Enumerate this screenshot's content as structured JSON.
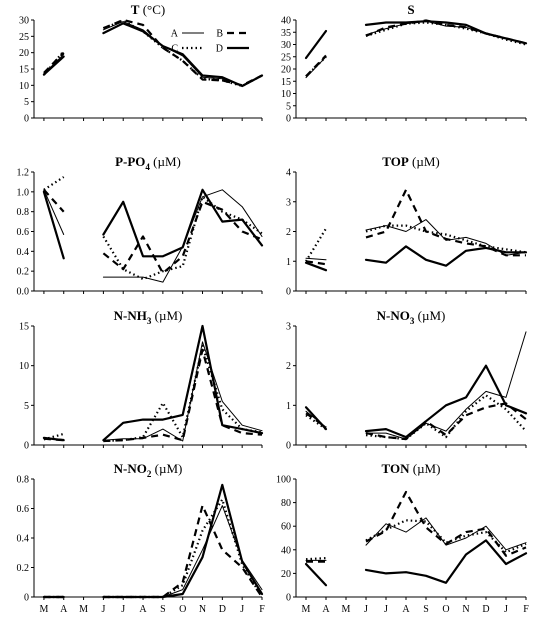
{
  "styles": {
    "A": {
      "width": 1.0,
      "dash": ""
    },
    "B": {
      "width": 2.2,
      "dash": "7,5"
    },
    "C": {
      "width": 2.2,
      "dash": "1.5,3"
    },
    "D": {
      "width": 2.2,
      "dash": ""
    }
  },
  "chart_data": [
    {
      "type": "line",
      "title": "T",
      "unit": "(°C)",
      "categories": [
        "M",
        "A",
        "M",
        "J",
        "J",
        "A",
        "S",
        "O",
        "N",
        "D",
        "J",
        "F"
      ],
      "ylim": [
        0,
        30
      ],
      "yticks": [
        "0",
        "5",
        "10",
        "15",
        "20",
        "25",
        "30"
      ],
      "legend": [
        "A",
        "B",
        "C",
        "D"
      ],
      "series": [
        {
          "name": "A",
          "values": [
            13.5,
            19.5,
            null,
            27,
            29.5,
            27,
            22,
            19,
            12.5,
            12,
            10,
            13
          ]
        },
        {
          "name": "B",
          "values": [
            13.8,
            20,
            null,
            27.5,
            30,
            28.5,
            21.5,
            17.5,
            11.8,
            11.5,
            10,
            13
          ]
        },
        {
          "name": "C",
          "values": [
            13.2,
            20.5,
            null,
            27.5,
            29.8,
            26.5,
            21.5,
            17.5,
            12,
            11.5,
            9.8,
            13
          ]
        },
        {
          "name": "D",
          "values": [
            13.3,
            18.8,
            null,
            26,
            29,
            26.5,
            22,
            19.5,
            13,
            12.5,
            9.8,
            13
          ]
        }
      ]
    },
    {
      "type": "line",
      "title": "S",
      "unit": "",
      "categories": [
        "M",
        "A",
        "M",
        "J",
        "J",
        "A",
        "S",
        "O",
        "N",
        "D",
        "J",
        "F"
      ],
      "ylim": [
        0,
        40
      ],
      "yticks": [
        "0",
        "5",
        "10",
        "15",
        "20",
        "25",
        "30",
        "35",
        "40"
      ],
      "series": [
        {
          "name": "A",
          "values": [
            16.5,
            25,
            null,
            34,
            36.5,
            38.5,
            39.5,
            37.5,
            37,
            34.5,
            32.5,
            30.5
          ]
        },
        {
          "name": "B",
          "values": [
            17,
            25.5,
            null,
            33.5,
            37,
            38.5,
            39.8,
            38,
            37,
            34.5,
            32.5,
            30.5
          ]
        },
        {
          "name": "C",
          "values": [
            17,
            25,
            null,
            33.5,
            36,
            38.5,
            39,
            38,
            36.5,
            34.5,
            32,
            30
          ]
        },
        {
          "name": "D",
          "values": [
            24.5,
            35.5,
            null,
            38,
            39,
            39,
            39.5,
            39,
            38,
            34.5,
            32.5,
            30.5
          ]
        }
      ]
    },
    {
      "type": "line",
      "title": "P-PO4",
      "unit": "(µM)",
      "categories": [
        "M",
        "A",
        "M",
        "J",
        "J",
        "A",
        "S",
        "O",
        "N",
        "D",
        "J",
        "F"
      ],
      "ylim": [
        0,
        1.2
      ],
      "yticks": [
        "0.0",
        "0.2",
        "0.4",
        "0.6",
        "0.8",
        "1.0",
        "1.2"
      ],
      "series": [
        {
          "name": "A",
          "values": [
            1.02,
            0.57,
            null,
            0.14,
            0.14,
            0.14,
            0.09,
            0.45,
            0.95,
            1.02,
            0.85,
            0.55
          ]
        },
        {
          "name": "B",
          "values": [
            1.02,
            0.8,
            null,
            0.38,
            0.22,
            0.55,
            0.18,
            0.35,
            0.9,
            0.82,
            0.6,
            0.52
          ]
        },
        {
          "name": "C",
          "values": [
            1.02,
            1.15,
            null,
            0.55,
            0.22,
            0.12,
            0.2,
            0.25,
            0.95,
            0.8,
            0.72,
            0.58
          ]
        },
        {
          "name": "D",
          "values": [
            1.0,
            0.33,
            null,
            0.57,
            0.9,
            0.35,
            0.35,
            0.44,
            1.02,
            0.7,
            0.72,
            0.46
          ]
        }
      ]
    },
    {
      "type": "line",
      "title": "TOP",
      "unit": "(µM)",
      "categories": [
        "M",
        "A",
        "M",
        "J",
        "J",
        "A",
        "S",
        "O",
        "N",
        "D",
        "J",
        "F"
      ],
      "ylim": [
        0,
        4
      ],
      "yticks": [
        "0",
        "1",
        "2",
        "3",
        "4"
      ],
      "series": [
        {
          "name": "A",
          "values": [
            1.1,
            1.05,
            null,
            2.05,
            2.2,
            2.0,
            2.4,
            1.7,
            1.8,
            1.6,
            1.2,
            1.3
          ]
        },
        {
          "name": "B",
          "values": [
            1.0,
            0.9,
            null,
            1.8,
            2.0,
            3.4,
            2.0,
            1.75,
            1.6,
            1.5,
            1.2,
            1.2
          ]
        },
        {
          "name": "C",
          "values": [
            1.0,
            2.1,
            null,
            2.0,
            2.2,
            2.2,
            2.0,
            1.9,
            1.7,
            1.5,
            1.4,
            1.3
          ]
        },
        {
          "name": "D",
          "values": [
            0.95,
            0.7,
            null,
            1.05,
            0.95,
            1.5,
            1.05,
            0.85,
            1.35,
            1.45,
            1.3,
            1.3
          ]
        }
      ]
    },
    {
      "type": "line",
      "title": "N-NH3",
      "unit": "(µM)",
      "categories": [
        "M",
        "A",
        "M",
        "J",
        "J",
        "A",
        "S",
        "O",
        "N",
        "D",
        "J",
        "F"
      ],
      "ylim": [
        0,
        15
      ],
      "yticks": [
        "0",
        "5",
        "10",
        "15"
      ],
      "series": [
        {
          "name": "A",
          "values": [
            0.8,
            0.7,
            null,
            0.6,
            0.8,
            0.8,
            2.0,
            0.5,
            13,
            5.5,
            2.5,
            1.8
          ]
        },
        {
          "name": "B",
          "values": [
            0.8,
            0.6,
            null,
            0.5,
            0.6,
            0.9,
            1.3,
            0.6,
            12,
            2.5,
            1.5,
            1.3
          ]
        },
        {
          "name": "C",
          "values": [
            0.7,
            1.4,
            null,
            0.5,
            0.6,
            1.0,
            5.3,
            1.0,
            12.5,
            4.5,
            2.0,
            1.6
          ]
        },
        {
          "name": "D",
          "values": [
            0.9,
            0.6,
            null,
            0.6,
            2.8,
            3.2,
            3.2,
            3.8,
            15,
            2.5,
            2.0,
            1.5
          ]
        }
      ]
    },
    {
      "type": "line",
      "title": "N-NO3",
      "unit": "(µM)",
      "categories": [
        "M",
        "A",
        "M",
        "J",
        "J",
        "A",
        "S",
        "O",
        "N",
        "D",
        "J",
        "F"
      ],
      "ylim": [
        0,
        3
      ],
      "yticks": [
        "0",
        "1",
        "2",
        "3"
      ],
      "series": [
        {
          "name": "A",
          "values": [
            0.85,
            0.45,
            null,
            0.3,
            0.3,
            0.15,
            0.55,
            0.35,
            0.9,
            1.35,
            1.2,
            2.85
          ]
        },
        {
          "name": "B",
          "values": [
            0.8,
            0.45,
            null,
            0.3,
            0.2,
            0.15,
            0.6,
            0.25,
            0.75,
            0.95,
            1.05,
            0.65
          ]
        },
        {
          "name": "C",
          "values": [
            0.75,
            0.4,
            null,
            0.25,
            0.2,
            0.15,
            0.55,
            0.2,
            0.85,
            1.25,
            0.9,
            0.35
          ]
        },
        {
          "name": "D",
          "values": [
            0.95,
            0.4,
            null,
            0.35,
            0.4,
            0.2,
            0.6,
            1.0,
            1.2,
            2.0,
            1.0,
            0.8
          ]
        }
      ]
    },
    {
      "type": "line",
      "title": "N-NO2",
      "unit": "(µM)",
      "categories": [
        "M",
        "A",
        "M",
        "J",
        "J",
        "A",
        "S",
        "O",
        "N",
        "D",
        "J",
        "F"
      ],
      "ylim": [
        0,
        0.8
      ],
      "yticks": [
        "0",
        "0.2",
        "0.4",
        "0.6",
        "0.8"
      ],
      "series": [
        {
          "name": "A",
          "values": [
            0.0,
            0.0,
            null,
            0.0,
            0.0,
            0.0,
            0.0,
            0.05,
            0.32,
            0.62,
            0.25,
            0.05
          ]
        },
        {
          "name": "B",
          "values": [
            0.0,
            0.0,
            null,
            0.0,
            0.0,
            0.0,
            0.0,
            0.1,
            0.62,
            0.32,
            0.2,
            0.0
          ]
        },
        {
          "name": "C",
          "values": [
            0.0,
            0.0,
            null,
            0.0,
            0.0,
            0.0,
            0.0,
            0.08,
            0.45,
            0.66,
            0.22,
            0.0
          ]
        },
        {
          "name": "D",
          "values": [
            0.0,
            0.0,
            null,
            0.0,
            0.0,
            0.0,
            0.0,
            0.02,
            0.27,
            0.76,
            0.24,
            0.02
          ]
        }
      ]
    },
    {
      "type": "line",
      "title": "TON",
      "unit": "(µM)",
      "categories": [
        "M",
        "A",
        "M",
        "J",
        "J",
        "A",
        "S",
        "O",
        "N",
        "D",
        "J",
        "F"
      ],
      "ylim": [
        0,
        100
      ],
      "yticks": [
        "0",
        "20",
        "40",
        "60",
        "80",
        "100"
      ],
      "series": [
        {
          "name": "A",
          "values": [
            31,
            31,
            null,
            44,
            62,
            55,
            67,
            44,
            50,
            60,
            40,
            46
          ]
        },
        {
          "name": "B",
          "values": [
            30,
            30,
            null,
            47,
            56,
            89,
            59,
            45,
            55,
            58,
            35,
            42
          ]
        },
        {
          "name": "C",
          "values": [
            32,
            33,
            null,
            48,
            57,
            65,
            64,
            46,
            52,
            55,
            38,
            45
          ]
        },
        {
          "name": "D",
          "values": [
            28,
            10,
            null,
            23,
            20,
            21,
            18,
            12,
            36,
            48,
            28,
            37
          ]
        }
      ]
    }
  ]
}
